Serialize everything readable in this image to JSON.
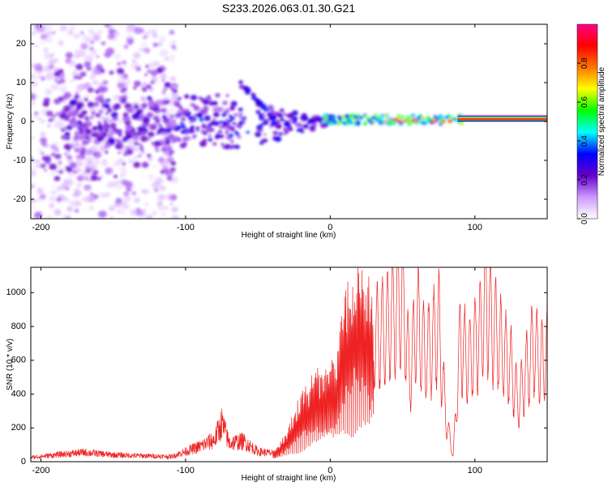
{
  "title": "S233.2026.063.01.30.G21",
  "chart_data": [
    {
      "type": "heatmap",
      "name": "spectrogram",
      "xlabel": "Height of straight line (km)",
      "ylabel": "Frequency (Hz)",
      "xlim": [
        -207,
        150
      ],
      "ylim": [
        -25,
        25
      ],
      "xticks": [
        -200,
        -100,
        0,
        100
      ],
      "yticks": [
        -20,
        -10,
        0,
        10,
        20
      ],
      "colorbar": {
        "label": "Normalized spectral amplitude",
        "range": [
          0,
          1
        ],
        "ticks": [
          "0.0",
          "0.2",
          "0.4",
          "0.6",
          "0.8"
        ],
        "tick_values": [
          0,
          0.2,
          0.4,
          0.6,
          0.8
        ],
        "colors": [
          "#ffffff",
          "#cc99ff",
          "#6600cc",
          "#0000ff",
          "#00ffff",
          "#00ff00",
          "#ffff00",
          "#ff7700",
          "#ff0000",
          "#ff0088"
        ]
      },
      "features": [
        {
          "region": "broad scatter",
          "x_range": [
            -207,
            -110
          ],
          "freq_range": [
            -25,
            25
          ],
          "amplitude": 0.1
        },
        {
          "region": "central cluster",
          "x_range": [
            -120,
            -60
          ],
          "freq_range": [
            -8,
            8
          ],
          "amplitude": 0.25
        },
        {
          "region": "diagonal streak",
          "x_range": [
            -62,
            -38
          ],
          "freq_range": [
            -2,
            10
          ],
          "amplitude": 0.3
        },
        {
          "region": "converging tail",
          "x_range": [
            -45,
            0
          ],
          "freq_range": [
            -10,
            5
          ],
          "amplitude": 0.3
        },
        {
          "region": "narrow band",
          "x_range": [
            0,
            90
          ],
          "freq_range": [
            -1,
            2
          ],
          "amplitude": 0.5
        },
        {
          "region": "constant tone",
          "x_range": [
            90,
            150
          ],
          "freq_range": [
            0,
            1.5
          ],
          "amplitude": 0.9
        }
      ]
    },
    {
      "type": "line",
      "name": "snr",
      "xlabel": "Height of straight line (km)",
      "ylabel": "SNR (10 * v/v)",
      "xlim": [
        -207,
        150
      ],
      "ylim": [
        0,
        1150
      ],
      "xticks": [
        -200,
        -100,
        0,
        100
      ],
      "yticks": [
        0,
        200,
        400,
        600,
        800,
        1000
      ],
      "color": "#ee2222",
      "series": [
        {
          "name": "SNR",
          "x": [
            -207,
            -190,
            -170,
            -150,
            -130,
            -110,
            -100,
            -90,
            -80,
            -75,
            -70,
            -60,
            -50,
            -40,
            -35,
            -30,
            -20,
            -10,
            0,
            5,
            10,
            20,
            30,
            40,
            45,
            50,
            55,
            60,
            65,
            70,
            75,
            80,
            85,
            90,
            95,
            100,
            105,
            108,
            112,
            118,
            125,
            130,
            135,
            140,
            145,
            150
          ],
          "y": [
            25,
            40,
            55,
            40,
            35,
            30,
            60,
            90,
            130,
            230,
            110,
            120,
            60,
            50,
            90,
            160,
            350,
            450,
            500,
            580,
            850,
            1000,
            850,
            950,
            1050,
            1150,
            600,
            1000,
            750,
            800,
            950,
            300,
            40,
            850,
            700,
            800,
            950,
            1100,
            950,
            800,
            650,
            400,
            600,
            800,
            700,
            720
          ]
        }
      ]
    }
  ]
}
